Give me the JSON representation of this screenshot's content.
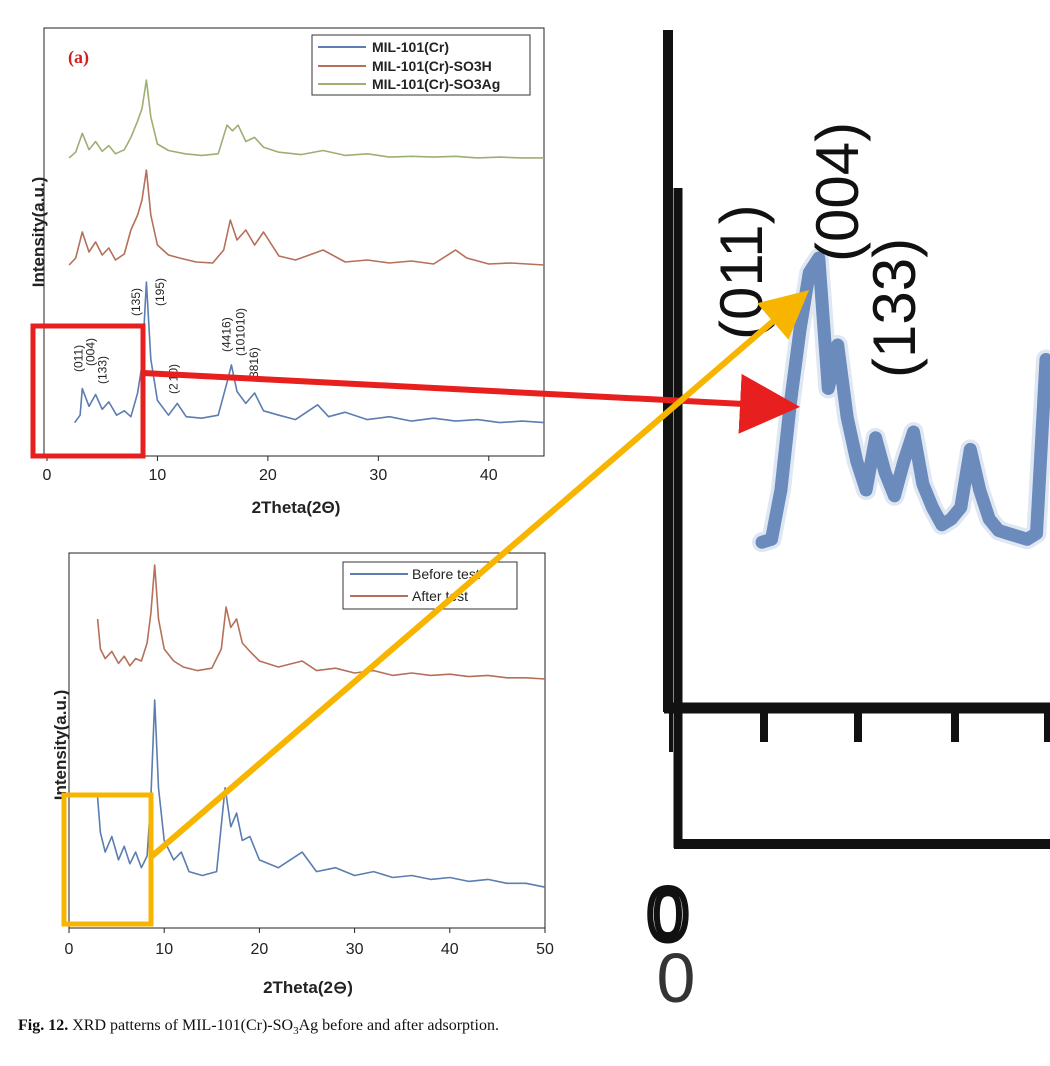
{
  "chart_data": [
    {
      "type": "line",
      "panel_label": "(a)",
      "xlabel": "2Theta(2Θ)",
      "ylabel": "Intensity(a.u.)",
      "xlim": [
        0,
        45
      ],
      "xticks": [
        0,
        10,
        20,
        30,
        40
      ],
      "legend_position": "top-right",
      "series": [
        {
          "name": "MIL-101(Cr)",
          "color": "#5b7db1",
          "x": [
            2.5,
            3.0,
            3.2,
            3.8,
            4.4,
            5.0,
            5.6,
            6.3,
            7.0,
            7.6,
            8.2,
            8.6,
            9.0,
            9.4,
            10.0,
            11.0,
            11.8,
            12.6,
            14.0,
            15.5,
            16.3,
            16.7,
            17.2,
            18.0,
            18.8,
            19.6,
            21.0,
            22.5,
            24.5,
            25.5,
            27.0,
            29.0,
            31.0,
            33.0,
            35.0,
            37.0,
            39.0,
            41.0,
            43.0,
            45.0
          ],
          "y": [
            0.05,
            0.1,
            0.28,
            0.16,
            0.24,
            0.14,
            0.19,
            0.1,
            0.13,
            0.09,
            0.25,
            0.44,
            1.0,
            0.48,
            0.2,
            0.1,
            0.18,
            0.09,
            0.08,
            0.1,
            0.32,
            0.44,
            0.26,
            0.18,
            0.25,
            0.13,
            0.1,
            0.07,
            0.17,
            0.09,
            0.12,
            0.07,
            0.09,
            0.06,
            0.08,
            0.06,
            0.07,
            0.05,
            0.06,
            0.05
          ]
        },
        {
          "name": "MIL-101(Cr)-SO3H",
          "color": "#b5705a",
          "x": [
            2.0,
            2.6,
            3.2,
            3.8,
            4.4,
            5.0,
            5.6,
            6.2,
            7.0,
            7.6,
            8.2,
            8.6,
            9.0,
            9.4,
            10.0,
            11.0,
            12.0,
            13.5,
            15.0,
            16.0,
            16.6,
            17.2,
            18.0,
            18.8,
            19.6,
            21.0,
            22.5,
            24.0,
            25.0,
            27.0,
            29.0,
            31.0,
            33.0,
            35.0,
            37.0,
            38.0,
            40.0,
            42.0,
            45.0
          ],
          "y": [
            0.05,
            0.12,
            0.38,
            0.18,
            0.28,
            0.15,
            0.22,
            0.1,
            0.16,
            0.4,
            0.55,
            0.7,
            1.0,
            0.55,
            0.25,
            0.15,
            0.12,
            0.08,
            0.07,
            0.2,
            0.5,
            0.3,
            0.4,
            0.25,
            0.38,
            0.14,
            0.1,
            0.16,
            0.2,
            0.08,
            0.1,
            0.07,
            0.09,
            0.06,
            0.2,
            0.12,
            0.06,
            0.07,
            0.05
          ]
        },
        {
          "name": "MIL-101(Cr)-SO3Ag",
          "color": "#9eaf74",
          "x": [
            2.0,
            2.6,
            3.2,
            3.8,
            4.4,
            5.0,
            5.6,
            6.2,
            7.0,
            7.6,
            8.2,
            8.6,
            9.0,
            9.4,
            10.0,
            11.0,
            12.5,
            14.0,
            15.5,
            16.3,
            16.8,
            17.3,
            18.0,
            18.8,
            19.6,
            21.0,
            23.0,
            25.0,
            27.0,
            29.0,
            31.0,
            33.0,
            35.0,
            37.0,
            39.0,
            41.0,
            43.0,
            45.0
          ],
          "y": [
            0.05,
            0.12,
            0.35,
            0.15,
            0.25,
            0.13,
            0.2,
            0.1,
            0.15,
            0.3,
            0.5,
            0.65,
            1.0,
            0.55,
            0.22,
            0.14,
            0.1,
            0.08,
            0.1,
            0.45,
            0.38,
            0.45,
            0.25,
            0.3,
            0.18,
            0.12,
            0.09,
            0.14,
            0.08,
            0.1,
            0.06,
            0.07,
            0.06,
            0.07,
            0.05,
            0.06,
            0.05,
            0.05
          ]
        }
      ],
      "annotations": [
        {
          "text": "(011)",
          "x": 3.2
        },
        {
          "text": "(004)",
          "x": 4.3
        },
        {
          "text": "(133)",
          "x": 5.4
        },
        {
          "text": "(135)",
          "x": 8.4
        },
        {
          "text": "(195)",
          "x": 10.6
        },
        {
          "text": "(2  10)",
          "x": 11.8
        },
        {
          "text": "(4416)",
          "x": 16.6
        },
        {
          "text": "(101010)",
          "x": 17.9
        },
        {
          "text": "3816)",
          "x": 19.1
        }
      ]
    },
    {
      "type": "line",
      "xlabel": "2Theta(2⊖)",
      "ylabel": "Intensity(a.u.)",
      "xlim": [
        0,
        50
      ],
      "xticks": [
        0,
        10,
        20,
        30,
        40,
        50
      ],
      "legend_position": "top-right",
      "series": [
        {
          "name": "Before test",
          "color": "#5b7db1",
          "x": [
            3.0,
            3.3,
            3.8,
            4.5,
            5.2,
            5.8,
            6.4,
            7.0,
            7.6,
            8.2,
            8.6,
            9.0,
            9.4,
            10.0,
            11.0,
            11.8,
            12.6,
            14.0,
            15.5,
            16.4,
            17.0,
            17.6,
            18.2,
            19.0,
            20.0,
            22.0,
            24.5,
            26.0,
            28.0,
            30.0,
            32.0,
            34.0,
            36.0,
            38.0,
            40.0,
            42.0,
            44.0,
            46.0,
            48.0,
            50.0
          ],
          "y": [
            0.5,
            0.32,
            0.22,
            0.3,
            0.18,
            0.25,
            0.16,
            0.22,
            0.14,
            0.2,
            0.5,
            1.0,
            0.55,
            0.28,
            0.18,
            0.22,
            0.12,
            0.1,
            0.12,
            0.55,
            0.35,
            0.42,
            0.28,
            0.3,
            0.18,
            0.14,
            0.22,
            0.12,
            0.14,
            0.1,
            0.12,
            0.09,
            0.1,
            0.08,
            0.09,
            0.07,
            0.08,
            0.06,
            0.06,
            0.04
          ]
        },
        {
          "name": "After test",
          "color": "#b5705a",
          "x": [
            3.0,
            3.3,
            3.8,
            4.5,
            5.2,
            5.8,
            6.4,
            7.0,
            7.6,
            8.2,
            8.6,
            9.0,
            9.4,
            10.0,
            11.0,
            12.0,
            13.5,
            15.0,
            16.0,
            16.5,
            17.0,
            17.6,
            18.2,
            19.0,
            20.0,
            22.0,
            24.5,
            26.0,
            28.0,
            30.0,
            32.0,
            34.0,
            36.0,
            38.0,
            40.0,
            42.0,
            44.0,
            46.0,
            48.0,
            50.0
          ],
          "y": [
            0.55,
            0.3,
            0.22,
            0.28,
            0.18,
            0.24,
            0.16,
            0.22,
            0.2,
            0.35,
            0.6,
            1.0,
            0.55,
            0.3,
            0.2,
            0.15,
            0.12,
            0.14,
            0.3,
            0.65,
            0.48,
            0.55,
            0.35,
            0.28,
            0.2,
            0.15,
            0.2,
            0.12,
            0.14,
            0.1,
            0.12,
            0.08,
            0.1,
            0.08,
            0.09,
            0.07,
            0.08,
            0.06,
            0.06,
            0.05
          ]
        }
      ]
    },
    {
      "type": "line",
      "xlabel": "",
      "ylabel": "",
      "xticks": [
        "0",
        "0"
      ],
      "series": [
        {
          "name": "",
          "color": "#6a8bbb",
          "x": [
            0,
            1,
            2,
            3,
            4,
            5,
            6,
            7,
            8,
            9,
            10,
            11,
            12,
            13,
            14,
            15,
            16,
            17,
            18,
            19,
            20,
            21,
            22,
            23,
            24,
            25,
            26,
            27,
            28,
            29,
            30
          ],
          "y": [
            0.02,
            0.03,
            0.2,
            0.5,
            0.75,
            0.95,
            1.0,
            0.55,
            0.7,
            0.45,
            0.3,
            0.2,
            0.38,
            0.26,
            0.18,
            0.3,
            0.4,
            0.22,
            0.14,
            0.08,
            0.1,
            0.14,
            0.34,
            0.2,
            0.1,
            0.06,
            0.05,
            0.04,
            0.03,
            0.05,
            0.65
          ]
        }
      ],
      "annotations": [
        {
          "text": "(011)"
        },
        {
          "text": "(004)"
        },
        {
          "text": "(133)"
        }
      ]
    }
  ],
  "caption": {
    "label": "Fig. 12.",
    "text_before": "XRD patterns of MIL-101(Cr)-SO",
    "sub": "3",
    "text_after": "Ag before and after adsorption."
  },
  "colors": {
    "red_callout": "#e81f1f",
    "yellow_callout": "#f7b500"
  }
}
